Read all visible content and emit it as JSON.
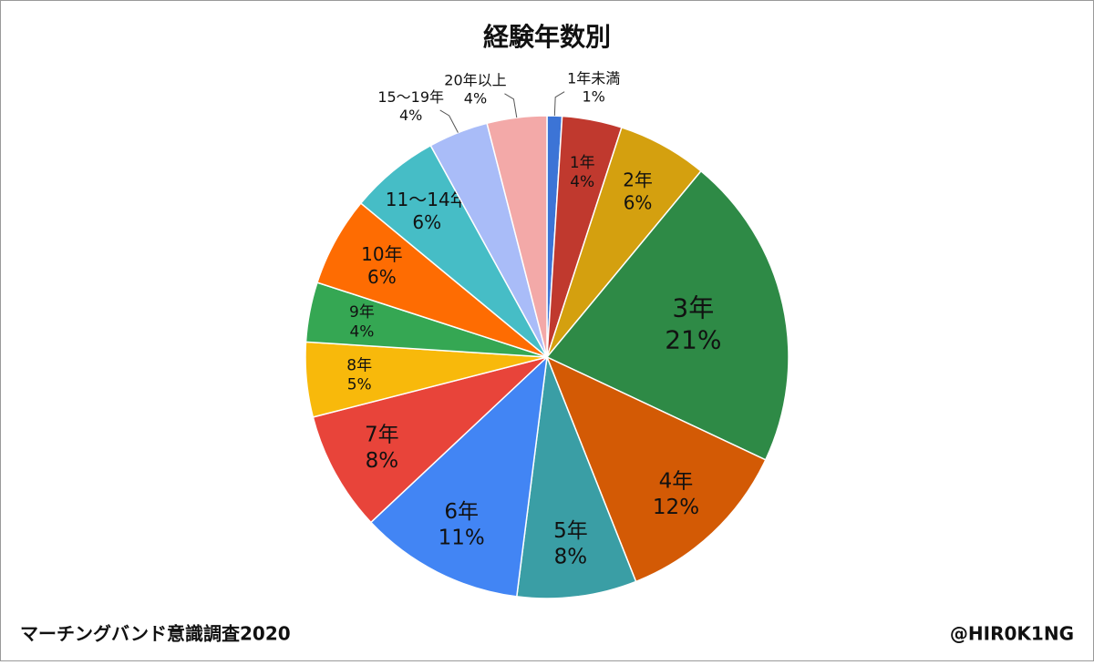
{
  "chart_data": {
    "type": "pie",
    "title": "経験年数別",
    "categories": [
      "1年未満",
      "1年",
      "2年",
      "3年",
      "4年",
      "5年",
      "6年",
      "7年",
      "8年",
      "9年",
      "10年",
      "11～14年",
      "15～19年",
      "20年以上"
    ],
    "values": [
      1,
      4,
      6,
      21,
      12,
      8,
      11,
      8,
      5,
      4,
      6,
      6,
      4,
      4
    ],
    "value_labels": [
      "1%",
      "4%",
      "6%",
      "21%",
      "12%",
      "8%",
      "11%",
      "8%",
      "5%",
      "4%",
      "6%",
      "6%",
      "4%",
      "4%"
    ],
    "colors": [
      "#3c74d6",
      "#c0392e",
      "#d4a00f",
      "#2e8a46",
      "#d35a05",
      "#3a9ea5",
      "#4285f4",
      "#e8443a",
      "#f8b90b",
      "#35a753",
      "#fe6c02",
      "#46bdc6",
      "#a9bcf8",
      "#f3a9a8"
    ],
    "source": "マーチングバンド意識調査2020",
    "credit": "@HIR0K1NG"
  }
}
